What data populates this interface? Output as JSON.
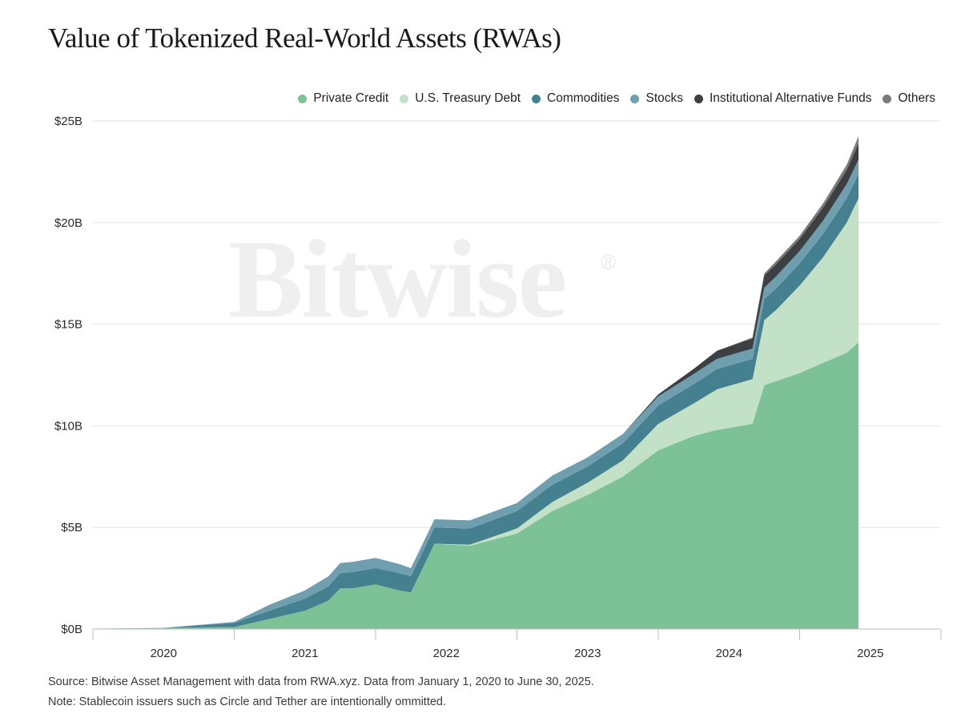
{
  "title": "Value of Tokenized Real-World Assets (RWAs)",
  "watermark": "Bitwise",
  "watermark_mark": "®",
  "footnotes": {
    "source": "Source: Bitwise Asset Management with data from RWA.xyz. Data from January 1, 2020 to June 30, 2025.",
    "note": "Note: Stablecoin issuers such as Circle and Tether are intentionally ommitted."
  },
  "colors": {
    "private_credit": "#7dc197",
    "treasury": "#c2e1c7",
    "commodities": "#44808f",
    "stocks": "#6f9fae",
    "inst_alt_funds": "#3d4043",
    "others": "#7a7a7a",
    "grid": "#e2e2e2"
  },
  "chart_data": {
    "type": "area",
    "stacked": true,
    "title": "Value of Tokenized Real-World Assets (RWAs)",
    "xlabel": "",
    "ylabel": "",
    "x_ticks": [
      "2020",
      "2021",
      "2022",
      "2023",
      "2024",
      "2025"
    ],
    "y_ticks": [
      "$0B",
      "$5B",
      "$10B",
      "$15B",
      "$20B",
      "$25B"
    ],
    "ylim": [
      0,
      25
    ],
    "y_unit": "billion USD",
    "grid": "horizontal",
    "legend_position": "top-right",
    "x": [
      "2020-01",
      "2020-07",
      "2021-01",
      "2021-04",
      "2021-07",
      "2021-09",
      "2021-10",
      "2021-11",
      "2022-01",
      "2022-03",
      "2022-04",
      "2022-06",
      "2022-09",
      "2023-01",
      "2023-04",
      "2023-07",
      "2023-10",
      "2024-01",
      "2024-04",
      "2024-06",
      "2024-09",
      "2024-10",
      "2024-11",
      "2025-01",
      "2025-03",
      "2025-05",
      "2025-06"
    ],
    "series": [
      {
        "name": "Private Credit",
        "key": "private_credit",
        "values": [
          0.02,
          0.06,
          0.1,
          0.5,
          0.9,
          1.4,
          2.0,
          2.0,
          2.2,
          1.9,
          1.8,
          4.2,
          4.1,
          4.7,
          5.8,
          6.6,
          7.5,
          8.8,
          9.5,
          9.8,
          10.1,
          12.0,
          12.2,
          12.6,
          13.1,
          13.6,
          14.1
        ]
      },
      {
        "name": "U.S. Treasury Debt",
        "key": "treasury",
        "values": [
          0,
          0,
          0,
          0,
          0,
          0,
          0,
          0,
          0,
          0,
          0,
          0,
          0.05,
          0.25,
          0.45,
          0.6,
          0.8,
          1.3,
          1.6,
          2.0,
          2.2,
          3.2,
          3.5,
          4.3,
          5.2,
          6.4,
          7.1
        ]
      },
      {
        "name": "Commodities",
        "key": "commodities",
        "values": [
          0,
          0,
          0.2,
          0.4,
          0.6,
          0.7,
          0.75,
          0.8,
          0.8,
          0.85,
          0.8,
          0.8,
          0.8,
          0.85,
          0.85,
          0.8,
          0.85,
          0.9,
          0.95,
          1.0,
          1.0,
          1.05,
          1.05,
          1.1,
          1.15,
          1.2,
          1.2
        ]
      },
      {
        "name": "Stocks",
        "key": "stocks",
        "values": [
          0,
          0,
          0.05,
          0.3,
          0.4,
          0.5,
          0.5,
          0.5,
          0.5,
          0.45,
          0.4,
          0.4,
          0.4,
          0.4,
          0.45,
          0.45,
          0.45,
          0.45,
          0.5,
          0.5,
          0.5,
          0.55,
          0.6,
          0.6,
          0.65,
          0.7,
          0.7
        ]
      },
      {
        "name": "Institutional Alternative Funds",
        "key": "inst_alt_funds",
        "values": [
          0,
          0,
          0,
          0,
          0,
          0,
          0,
          0,
          0,
          0,
          0,
          0,
          0,
          0,
          0,
          0,
          0,
          0.1,
          0.25,
          0.4,
          0.5,
          0.6,
          0.6,
          0.6,
          0.65,
          0.7,
          0.8
        ]
      },
      {
        "name": "Others",
        "key": "others",
        "values": [
          0,
          0,
          0,
          0,
          0,
          0,
          0,
          0,
          0,
          0,
          0,
          0,
          0,
          0,
          0,
          0,
          0,
          0,
          0,
          0,
          0.05,
          0.1,
          0.15,
          0.15,
          0.2,
          0.25,
          0.35
        ]
      }
    ]
  }
}
